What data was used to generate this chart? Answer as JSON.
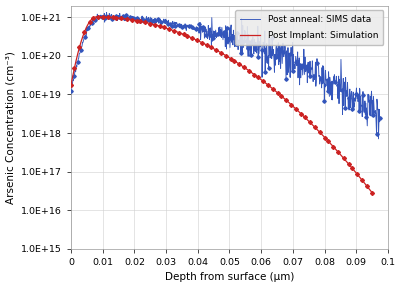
{
  "xlabel": "Depth from surface (μm)",
  "ylabel": "Arsenic Concentration (cm⁻³)",
  "xlim": [
    0,
    0.1
  ],
  "ylim_log": [
    1000000000000000.0,
    2e+21
  ],
  "yticks": [
    1000000000000000.0,
    1e+16,
    1e+17,
    1e+18,
    1e+19,
    1e+20,
    1e+21
  ],
  "ytick_labels": [
    "1.0E+15",
    "1.0E+16",
    "1.0E+17",
    "1.0E+18",
    "1.0E+19",
    "1.0E+20",
    "1.0E+21"
  ],
  "xticks": [
    0,
    0.01,
    0.02,
    0.03,
    0.04,
    0.05,
    0.06,
    0.07,
    0.08,
    0.09,
    0.1
  ],
  "legend_labels": [
    "Post Implant: Simulation",
    "Post anneal: SIMS data"
  ],
  "sim_color": "#cc2222",
  "sims_color": "#3355bb",
  "background_color": "#ffffff",
  "legend_bg": "#ebebeb"
}
